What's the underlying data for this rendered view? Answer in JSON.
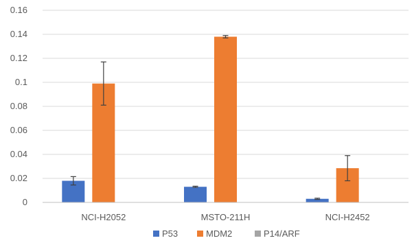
{
  "chart_data": {
    "type": "bar",
    "categories": [
      "NCI-H2052",
      "MSTO-211H",
      "NCI-H2452"
    ],
    "series": [
      {
        "name": "P53",
        "color": "#4472C4",
        "values": [
          0.018,
          0.013,
          0.003
        ],
        "errors": [
          0.0035,
          0.0005,
          0.0005
        ]
      },
      {
        "name": "MDM2",
        "color": "#ED7D31",
        "values": [
          0.099,
          0.138,
          0.0285
        ],
        "errors": [
          0.018,
          0.001,
          0.0105
        ]
      },
      {
        "name": "P14/ARF",
        "color": "#A5A5A5",
        "values": [
          0,
          0,
          0
        ],
        "errors": [
          0,
          0,
          0
        ]
      }
    ],
    "ylim": [
      0,
      0.16
    ],
    "yticks": [
      "0",
      "0.02",
      "0.04",
      "0.06",
      "0.08",
      "0.1",
      "0.12",
      "0.14",
      "0.16"
    ],
    "grid": true,
    "legend": "bottom",
    "title": "",
    "xlabel": "",
    "ylabel": ""
  }
}
